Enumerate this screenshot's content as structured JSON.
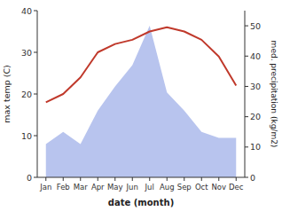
{
  "chart_data": {
    "type": "line",
    "xlabel": "date (month)",
    "ylabel": "max temp (C)",
    "y2label": "med. precipitation (kg/m2)",
    "categories": [
      "Jan",
      "Feb",
      "Mar",
      "Apr",
      "May",
      "Jun",
      "Jul",
      "Aug",
      "Sep",
      "Oct",
      "Nov",
      "Dec"
    ],
    "series": [
      {
        "type": "area",
        "axis": "y2",
        "color": "#b8c4ee",
        "values": [
          11,
          15,
          11,
          22,
          30,
          37,
          50,
          28,
          22,
          15,
          13,
          13
        ]
      },
      {
        "type": "line",
        "color": "#c0392b",
        "values": [
          18,
          20,
          24,
          30,
          32,
          33,
          35,
          36,
          35,
          33,
          29,
          22
        ]
      }
    ],
    "ylim": [
      0,
      40
    ],
    "yticks": [
      0,
      10,
      20,
      30,
      40
    ],
    "y2lim": [
      0,
      55
    ],
    "y2ticks": [
      0,
      10,
      20,
      30,
      40,
      50
    ],
    "grid": false
  }
}
